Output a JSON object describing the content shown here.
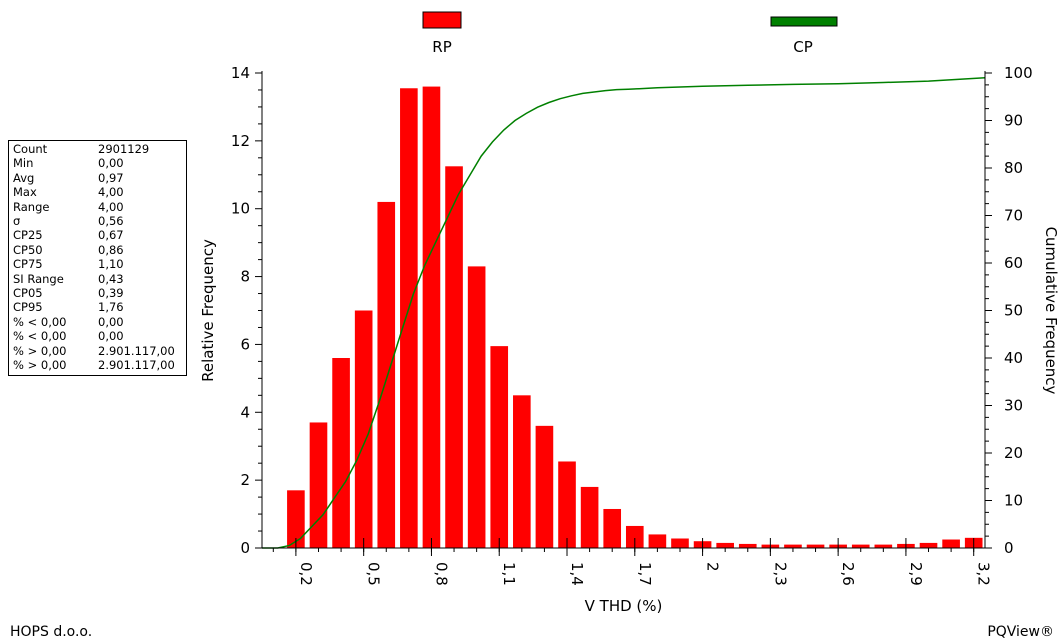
{
  "chart_data": {
    "type": "bar",
    "title": "",
    "xlabel": "V THD (%)",
    "ylabel": "Relative Frequency",
    "y2label": "Cumulative Frequency",
    "xlim": [
      0.05,
      3.25
    ],
    "ylim": [
      0,
      14
    ],
    "y2lim": [
      0,
      100
    ],
    "xticks": [
      0.2,
      0.5,
      0.8,
      1.1,
      1.4,
      1.7,
      2.0,
      2.3,
      2.6,
      2.9,
      3.2
    ],
    "xtick_labels": [
      "0,2",
      "0,5",
      "0,8",
      "1,1",
      "1,4",
      "1,7",
      "2",
      "2,3",
      "2,6",
      "2,9",
      "3,2"
    ],
    "yticks": [
      0,
      2,
      4,
      6,
      8,
      10,
      12,
      14
    ],
    "y2ticks": [
      0,
      10,
      20,
      30,
      40,
      50,
      60,
      70,
      80,
      90,
      100
    ],
    "grid": false,
    "legend_position": "top",
    "series": [
      {
        "name": "RP",
        "type": "bar",
        "color": "#ff0000",
        "x": [
          0.2,
          0.3,
          0.4,
          0.5,
          0.6,
          0.7,
          0.8,
          0.9,
          1.0,
          1.1,
          1.2,
          1.3,
          1.4,
          1.5,
          1.6,
          1.7,
          1.8,
          1.9,
          2.0,
          2.1,
          2.2,
          2.3,
          2.4,
          2.5,
          2.6,
          2.7,
          2.8,
          2.9,
          3.0,
          3.1,
          3.2
        ],
        "values": [
          1.7,
          3.7,
          5.6,
          7.0,
          10.2,
          13.55,
          13.6,
          11.25,
          8.3,
          5.95,
          4.5,
          3.6,
          2.55,
          1.8,
          1.15,
          0.65,
          0.4,
          0.28,
          0.2,
          0.15,
          0.12,
          0.1,
          0.1,
          0.1,
          0.1,
          0.1,
          0.1,
          0.12,
          0.15,
          0.25,
          0.3
        ]
      },
      {
        "name": "CP",
        "type": "line",
        "axis": "right",
        "color": "#008000",
        "x": [
          0.05,
          0.12,
          0.17,
          0.22,
          0.27,
          0.32,
          0.37,
          0.42,
          0.47,
          0.52,
          0.57,
          0.62,
          0.67,
          0.72,
          0.77,
          0.82,
          0.87,
          0.92,
          0.97,
          1.02,
          1.07,
          1.12,
          1.17,
          1.22,
          1.27,
          1.32,
          1.37,
          1.42,
          1.47,
          1.52,
          1.57,
          1.62,
          1.67,
          1.72,
          1.8,
          1.9,
          2.0,
          2.2,
          2.4,
          2.6,
          2.8,
          3.0,
          3.25
        ],
        "values": [
          0,
          0,
          0.5,
          2,
          4.5,
          7,
          10.5,
          14,
          18.5,
          24,
          31,
          38.5,
          46,
          53.5,
          59.5,
          64.5,
          69.5,
          74.5,
          78.5,
          82.5,
          85.5,
          88,
          90,
          91.5,
          92.8,
          93.8,
          94.6,
          95.2,
          95.7,
          96,
          96.3,
          96.5,
          96.6,
          96.7,
          96.9,
          97.05,
          97.2,
          97.4,
          97.6,
          97.75,
          98,
          98.3,
          99
        ]
      }
    ]
  },
  "stats": [
    {
      "k": "Count",
      "v": "2901129"
    },
    {
      "k": "Min",
      "v": "0,00"
    },
    {
      "k": "Avg",
      "v": "0,97"
    },
    {
      "k": "Max",
      "v": "4,00"
    },
    {
      "k": "Range",
      "v": "4,00"
    },
    {
      "k": "σ",
      "v": "0,56"
    },
    {
      "k": "CP25",
      "v": "0,67"
    },
    {
      "k": "CP50",
      "v": "0,86"
    },
    {
      "k": "CP75",
      "v": "1,10"
    },
    {
      "k": "SI Range",
      "v": "0,43"
    },
    {
      "k": "CP05",
      "v": "0,39"
    },
    {
      "k": "CP95",
      "v": "1,76"
    },
    {
      "k": "% < 0,00",
      "v": "0,00"
    },
    {
      "k": "% < 0,00",
      "v": "0,00"
    },
    {
      "k": "% > 0,00",
      "v": "2.901.117,00"
    },
    {
      "k": "% > 0,00",
      "v": "2.901.117,00"
    }
  ],
  "footer": {
    "left": "HOPS d.o.o.",
    "right": "PQView®"
  }
}
